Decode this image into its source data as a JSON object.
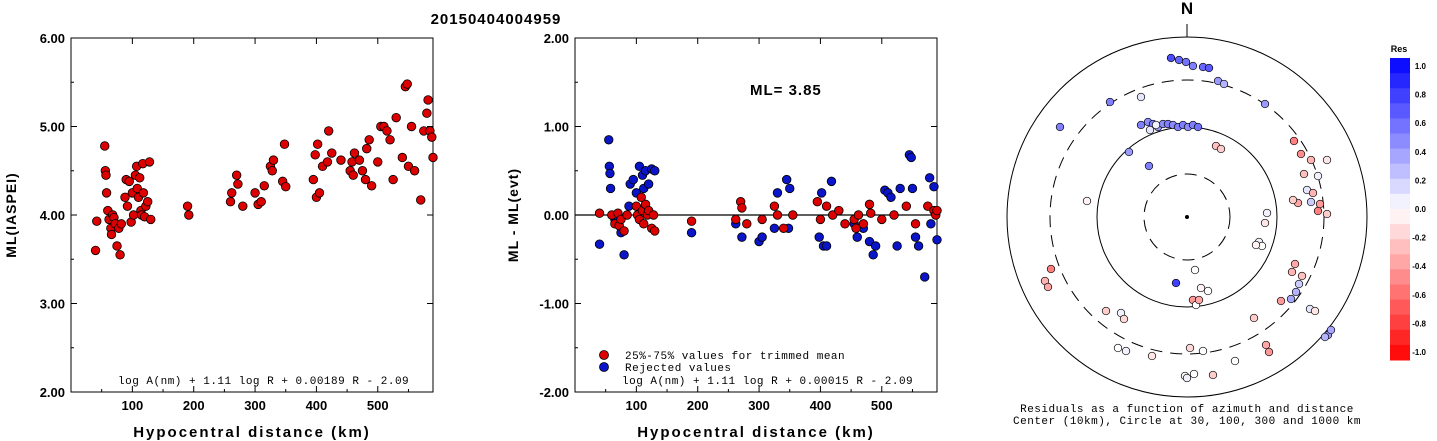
{
  "title": "20150404004959",
  "left_panel": {
    "ylabel": "ML(IASPEI)",
    "xlabel": "Hypocentral distance (km)",
    "formula": "log A(nm) + 1.11 log R + 0.00189 R - 2.09",
    "yticks": [
      "6.00",
      "5.00",
      "4.00",
      "3.00",
      "2.00"
    ],
    "xticks": [
      "100",
      "200",
      "300",
      "400",
      "500"
    ]
  },
  "middle_panel": {
    "ylabel": "ML - ML(evt)",
    "xlabel": "Hypocentral distance (km)",
    "ml_text": "ML= 3.85",
    "legend_trimmed": "25%-75% values for trimmed mean",
    "legend_rejected": "Rejected values",
    "formula": "log A(nm) + 1.11 log R + 0.00015 R - 2.09",
    "yticks": [
      "2.00",
      "1.00",
      "0.00",
      "-1.00",
      "-2.00"
    ],
    "xticks": [
      "100",
      "200",
      "300",
      "400",
      "500"
    ]
  },
  "polar_panel": {
    "north_label": "N",
    "caption_line1": "Residuals as a function of azimuth and distance",
    "caption_line2": "Center (10km), Circle at 30, 100, 300 and 1000 km"
  },
  "colorbar": {
    "title": "Res",
    "labels": [
      "1.0",
      "0.8",
      "0.6",
      "0.4",
      "0.2",
      "0.0",
      "-0.2",
      "-0.4",
      "-0.6",
      "-0.8",
      "-1.0"
    ]
  },
  "colors": {
    "trimmed": "#dd0000",
    "rejected": "#0a14c8",
    "line": "#000000"
  },
  "chart_data": [
    {
      "type": "scatter",
      "xlabel": "Hypocentral distance (km)",
      "ylabel": "ML(IASPEI)",
      "xlim": [
        0,
        590
      ],
      "ylim": [
        2.0,
        6.0
      ],
      "points": [
        [
          40,
          3.6
        ],
        [
          42,
          3.93
        ],
        [
          55,
          4.78
        ],
        [
          56,
          4.5
        ],
        [
          57,
          4.45
        ],
        [
          58,
          4.25
        ],
        [
          60,
          4.05
        ],
        [
          62,
          3.95
        ],
        [
          65,
          3.85
        ],
        [
          66,
          3.78
        ],
        [
          68,
          4.0
        ],
        [
          70,
          3.97
        ],
        [
          72,
          3.9
        ],
        [
          75,
          3.65
        ],
        [
          78,
          3.85
        ],
        [
          80,
          3.55
        ],
        [
          82,
          3.9
        ],
        [
          88,
          4.2
        ],
        [
          90,
          4.4
        ],
        [
          92,
          4.1
        ],
        [
          95,
          4.38
        ],
        [
          98,
          3.92
        ],
        [
          100,
          4.25
        ],
        [
          102,
          4.0
        ],
        [
          105,
          4.45
        ],
        [
          107,
          4.55
        ],
        [
          108,
          4.3
        ],
        [
          110,
          4.2
        ],
        [
          112,
          4.42
        ],
        [
          114,
          4.05
        ],
        [
          115,
          4.0
        ],
        [
          117,
          4.58
        ],
        [
          118,
          4.25
        ],
        [
          120,
          3.98
        ],
        [
          122,
          4.1
        ],
        [
          125,
          4.15
        ],
        [
          128,
          4.6
        ],
        [
          130,
          3.95
        ],
        [
          190,
          4.1
        ],
        [
          192,
          4.0
        ],
        [
          260,
          4.15
        ],
        [
          262,
          4.25
        ],
        [
          270,
          4.45
        ],
        [
          272,
          4.35
        ],
        [
          280,
          4.1
        ],
        [
          300,
          4.25
        ],
        [
          305,
          4.12
        ],
        [
          310,
          4.15
        ],
        [
          315,
          4.33
        ],
        [
          325,
          4.55
        ],
        [
          328,
          4.5
        ],
        [
          330,
          4.62
        ],
        [
          345,
          4.38
        ],
        [
          348,
          4.8
        ],
        [
          350,
          4.32
        ],
        [
          395,
          4.4
        ],
        [
          398,
          4.68
        ],
        [
          400,
          4.2
        ],
        [
          402,
          4.8
        ],
        [
          405,
          4.25
        ],
        [
          410,
          4.55
        ],
        [
          418,
          4.6
        ],
        [
          420,
          4.95
        ],
        [
          425,
          4.7
        ],
        [
          440,
          4.62
        ],
        [
          455,
          4.5
        ],
        [
          458,
          4.6
        ],
        [
          460,
          4.45
        ],
        [
          462,
          4.7
        ],
        [
          470,
          4.62
        ],
        [
          475,
          4.5
        ],
        [
          480,
          4.4
        ],
        [
          482,
          4.75
        ],
        [
          486,
          4.85
        ],
        [
          490,
          4.33
        ],
        [
          500,
          4.6
        ],
        [
          505,
          5.0
        ],
        [
          510,
          5.0
        ],
        [
          515,
          4.95
        ],
        [
          520,
          4.85
        ],
        [
          525,
          4.4
        ],
        [
          530,
          5.1
        ],
        [
          540,
          4.65
        ],
        [
          545,
          5.45
        ],
        [
          548,
          5.48
        ],
        [
          550,
          4.55
        ],
        [
          555,
          5.0
        ],
        [
          560,
          4.5
        ],
        [
          570,
          4.17
        ],
        [
          575,
          4.95
        ],
        [
          580,
          5.15
        ],
        [
          582,
          5.3
        ],
        [
          585,
          4.95
        ],
        [
          588,
          4.88
        ],
        [
          590,
          4.65
        ]
      ]
    },
    {
      "type": "scatter",
      "xlabel": "Hypocentral distance (km)",
      "ylabel": "ML - ML(evt)",
      "xlim": [
        0,
        590
      ],
      "ylim": [
        -2.0,
        2.0
      ],
      "ml": 3.85,
      "series": [
        {
          "name": "25%-75% values for trimmed mean",
          "points": [
            [
              40,
              0.02
            ],
            [
              60,
              0.0
            ],
            [
              65,
              -0.1
            ],
            [
              70,
              0.02
            ],
            [
              72,
              -0.12
            ],
            [
              75,
              -0.05
            ],
            [
              80,
              -0.18
            ],
            [
              85,
              0.0
            ],
            [
              100,
              0.1
            ],
            [
              102,
              0.0
            ],
            [
              105,
              -0.05
            ],
            [
              108,
              0.2
            ],
            [
              110,
              0.05
            ],
            [
              112,
              -0.1
            ],
            [
              115,
              0.12
            ],
            [
              118,
              0.0
            ],
            [
              120,
              0.05
            ],
            [
              125,
              -0.15
            ],
            [
              128,
              0.0
            ],
            [
              130,
              -0.18
            ],
            [
              190,
              -0.07
            ],
            [
              262,
              -0.05
            ],
            [
              270,
              0.15
            ],
            [
              272,
              0.08
            ],
            [
              280,
              -0.1
            ],
            [
              305,
              -0.05
            ],
            [
              325,
              0.1
            ],
            [
              330,
              0.0
            ],
            [
              340,
              -0.15
            ],
            [
              355,
              0.0
            ],
            [
              395,
              0.15
            ],
            [
              400,
              -0.05
            ],
            [
              410,
              0.1
            ],
            [
              420,
              0.0
            ],
            [
              430,
              0.05
            ],
            [
              440,
              -0.1
            ],
            [
              455,
              -0.05
            ],
            [
              458,
              -0.15
            ],
            [
              462,
              0.0
            ],
            [
              470,
              -0.1
            ],
            [
              480,
              0.12
            ],
            [
              482,
              0.02
            ],
            [
              500,
              -0.05
            ],
            [
              520,
              0.0
            ],
            [
              540,
              0.1
            ],
            [
              555,
              -0.1
            ],
            [
              575,
              0.1
            ],
            [
              585,
              0.05
            ],
            [
              588,
              0.0
            ],
            [
              590,
              0.05
            ]
          ]
        },
        {
          "name": "Rejected values",
          "points": [
            [
              40,
              -0.33
            ],
            [
              55,
              0.85
            ],
            [
              56,
              0.55
            ],
            [
              57,
              0.47
            ],
            [
              58,
              0.3
            ],
            [
              65,
              -0.05
            ],
            [
              75,
              -0.2
            ],
            [
              80,
              -0.45
            ],
            [
              88,
              0.1
            ],
            [
              90,
              0.35
            ],
            [
              95,
              0.4
            ],
            [
              100,
              0.25
            ],
            [
              105,
              0.55
            ],
            [
              110,
              0.45
            ],
            [
              112,
              0.3
            ],
            [
              115,
              0.5
            ],
            [
              120,
              0.35
            ],
            [
              125,
              0.52
            ],
            [
              130,
              0.5
            ],
            [
              190,
              -0.2
            ],
            [
              262,
              -0.1
            ],
            [
              272,
              -0.25
            ],
            [
              300,
              -0.3
            ],
            [
              305,
              -0.25
            ],
            [
              325,
              -0.15
            ],
            [
              330,
              0.25
            ],
            [
              345,
              0.4
            ],
            [
              348,
              -0.15
            ],
            [
              350,
              0.3
            ],
            [
              398,
              -0.25
            ],
            [
              402,
              0.25
            ],
            [
              405,
              -0.35
            ],
            [
              410,
              -0.35
            ],
            [
              418,
              0.38
            ],
            [
              455,
              -0.1
            ],
            [
              460,
              -0.25
            ],
            [
              470,
              -0.15
            ],
            [
              480,
              -0.3
            ],
            [
              486,
              -0.45
            ],
            [
              490,
              -0.35
            ],
            [
              505,
              0.28
            ],
            [
              510,
              0.25
            ],
            [
              515,
              0.2
            ],
            [
              525,
              -0.35
            ],
            [
              530,
              0.3
            ],
            [
              545,
              0.68
            ],
            [
              548,
              0.65
            ],
            [
              550,
              0.3
            ],
            [
              555,
              -0.25
            ],
            [
              560,
              -0.35
            ],
            [
              570,
              -0.7
            ],
            [
              578,
              0.42
            ],
            [
              580,
              -0.1
            ],
            [
              585,
              0.32
            ],
            [
              590,
              -0.28
            ]
          ]
        }
      ]
    }
  ]
}
